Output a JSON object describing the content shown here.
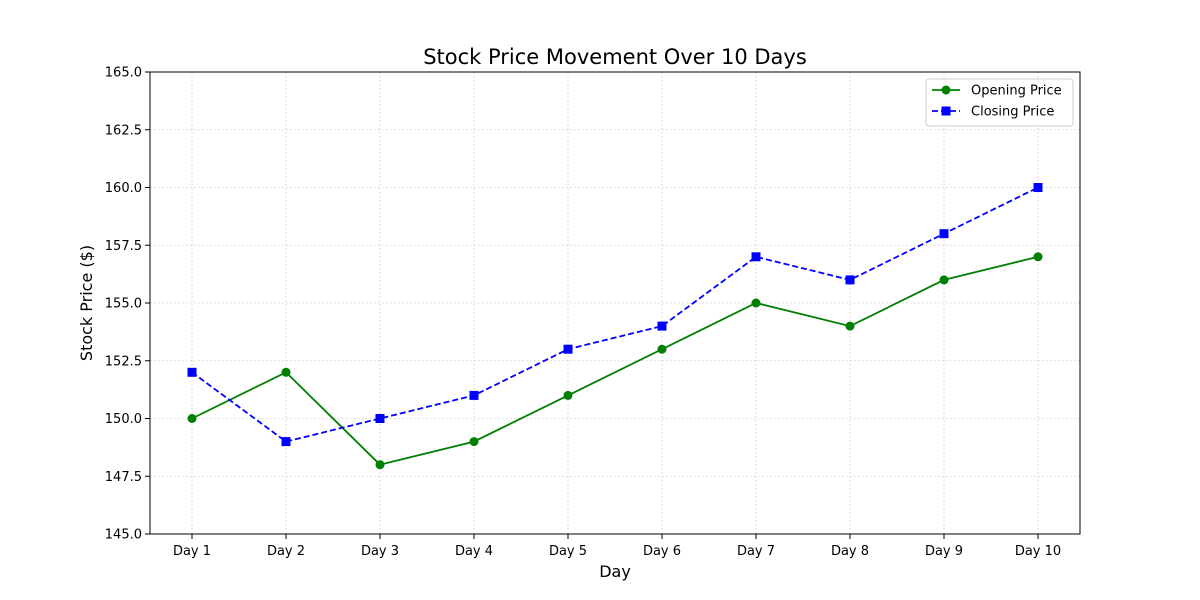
{
  "chart_data": {
    "type": "line",
    "title": "Stock Price Movement Over 10 Days",
    "xlabel": "Day",
    "ylabel": "Stock Price ($)",
    "categories": [
      "Day 1",
      "Day 2",
      "Day 3",
      "Day 4",
      "Day 5",
      "Day 6",
      "Day 7",
      "Day 8",
      "Day 9",
      "Day 10"
    ],
    "ylim": [
      145.0,
      165.0
    ],
    "yticks": [
      "145.0",
      "147.5",
      "150.0",
      "152.5",
      "155.0",
      "157.5",
      "160.0",
      "162.5",
      "165.0"
    ],
    "grid": true,
    "legend_position": "top-right",
    "series": [
      {
        "name": "Opening Price",
        "values": [
          150,
          152,
          148,
          149,
          151,
          153,
          155,
          154,
          156,
          157
        ],
        "color": "#008000",
        "line_style": "solid",
        "marker": "circle"
      },
      {
        "name": "Closing Price",
        "values": [
          152,
          149,
          150,
          151,
          153,
          154,
          157,
          156,
          158,
          160
        ],
        "color": "#0000ff",
        "line_style": "dashed",
        "marker": "square"
      }
    ]
  }
}
